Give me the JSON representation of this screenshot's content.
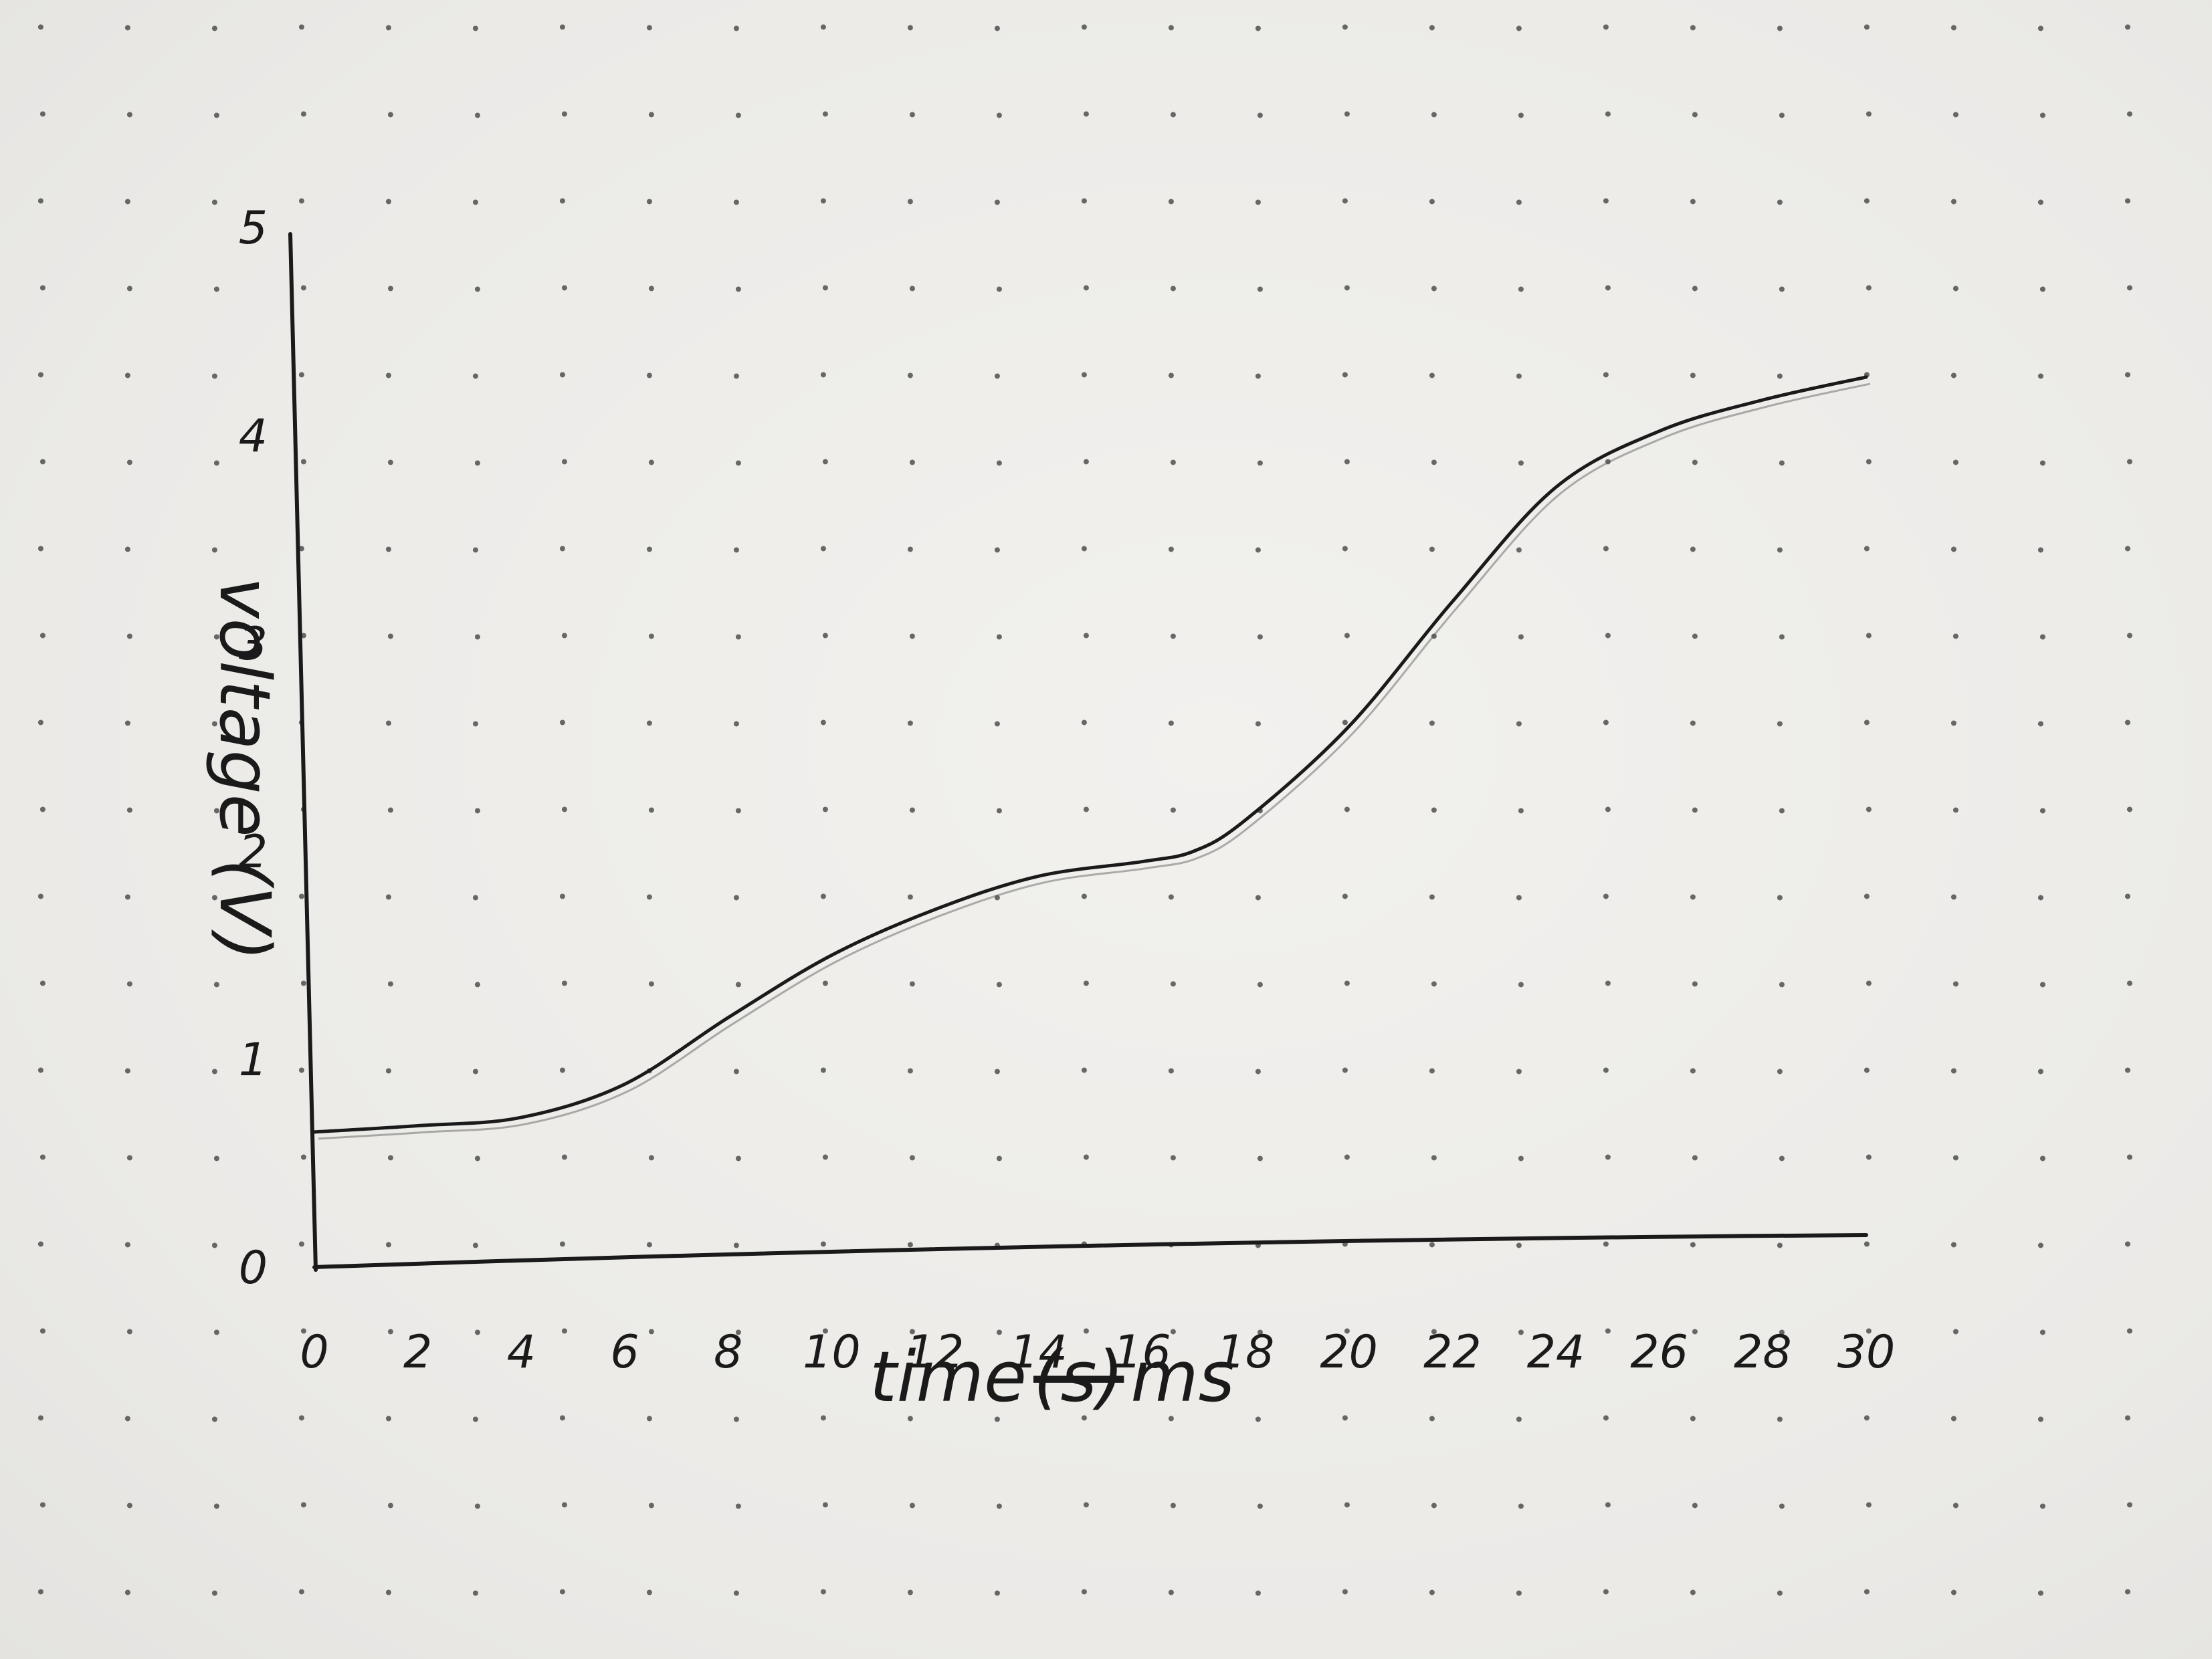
{
  "chart_data": {
    "type": "line",
    "title": "",
    "xlabel": "time (s) ms",
    "xlabel_parts": {
      "text": "time",
      "struck": "(s)",
      "unit": "ms"
    },
    "ylabel": "voltage (V)",
    "xlim": [
      0,
      30
    ],
    "ylim": [
      0,
      5
    ],
    "x_ticks": [
      "0",
      "2",
      "4",
      "6",
      "8",
      "10",
      "12",
      "14",
      "16",
      "18",
      "20",
      "22",
      "24",
      "26",
      "28",
      "30"
    ],
    "y_ticks": [
      "0",
      "1",
      "2",
      "3",
      "4",
      "5"
    ],
    "grid": "dot grid (notebook paper)",
    "legend": "none",
    "series": [
      {
        "x": [
          0,
          2,
          4,
          6,
          8,
          10,
          12,
          14,
          16,
          17,
          18,
          20,
          22,
          24,
          26,
          28,
          30
        ],
        "y": [
          0.65,
          0.68,
          0.72,
          0.88,
          1.2,
          1.5,
          1.72,
          1.88,
          1.95,
          2.0,
          2.15,
          2.6,
          3.2,
          3.75,
          4.02,
          4.17,
          4.28
        ]
      }
    ],
    "colors": {
      "ink": "#1a1a1a",
      "paper": "#eeedea",
      "dots": "#3a3a3a"
    }
  }
}
